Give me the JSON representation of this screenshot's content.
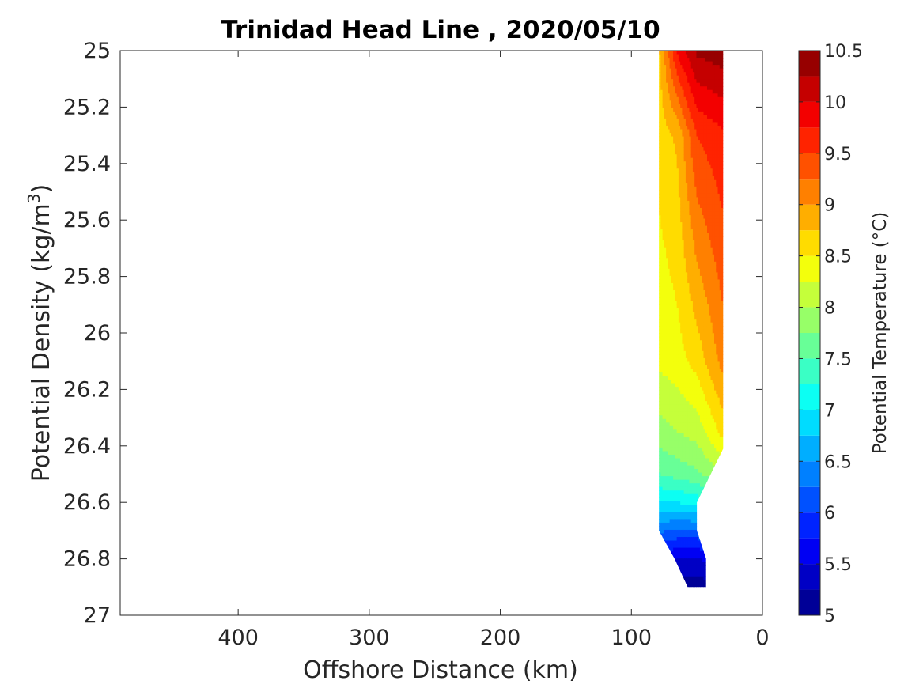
{
  "chart_data": {
    "type": "contour",
    "title": "Trinidad Head Line , 2020/05/10",
    "xlabel": "Offshore Distance (km)",
    "ylabel": "Potential Density (kg/m",
    "ylabel_sup": "3",
    "ylabel_close": ")",
    "xlim": [
      490,
      0
    ],
    "xdirection": "reversed",
    "ylim": [
      25,
      27
    ],
    "ydirection": "reversed",
    "xticks": [
      400,
      300,
      200,
      100,
      0
    ],
    "xtick_labels": [
      "400",
      "300",
      "200",
      "100",
      "0"
    ],
    "yticks": [
      25,
      25.2,
      25.4,
      25.6,
      25.8,
      26,
      26.2,
      26.4,
      26.6,
      26.8,
      27
    ],
    "ytick_labels": [
      "25",
      "25.2",
      "25.4",
      "25.6",
      "25.8",
      "26",
      "26.2",
      "26.4",
      "26.6",
      "26.8",
      "27"
    ],
    "grid": false,
    "colorbar": {
      "label": "Potential Temperature (°C)",
      "colormap": "jet",
      "clim": [
        5,
        10.5
      ],
      "step": 0.25,
      "ticks": [
        5,
        5.5,
        6,
        6.5,
        7,
        7.5,
        8,
        8.5,
        9,
        9.5,
        10,
        10.5
      ],
      "tick_labels": [
        "5",
        "5.5",
        "6",
        "6.5",
        "7",
        "7.5",
        "8",
        "8.5",
        "9",
        "9.5",
        "10",
        "10.5"
      ],
      "position": "right"
    },
    "section": {
      "x_offshore": 79,
      "x_inshore": 30,
      "sigma_top": 25,
      "boundary": [
        [
          79,
          25
        ],
        [
          30,
          25
        ],
        [
          30,
          26.41
        ],
        [
          50,
          26.6
        ],
        [
          50,
          26.7
        ],
        [
          43,
          26.8
        ],
        [
          43,
          26.9
        ],
        [
          57,
          26.9
        ],
        [
          67,
          26.8
        ],
        [
          79,
          26.7
        ]
      ],
      "temperature_profiles": [
        {
          "x": 79,
          "sigma": [
            25,
            25.3,
            26.1,
            26.35,
            26.5,
            26.6,
            26.7,
            26.8,
            26.9
          ],
          "theta": [
            8.7,
            8.6,
            8.3,
            7.9,
            7.5,
            7.0,
            6.3,
            5.6,
            5.2
          ]
        },
        {
          "x": 65,
          "sigma": [
            25,
            25.3,
            26.1,
            26.35,
            26.5,
            26.6,
            26.7,
            26.8,
            26.9
          ],
          "theta": [
            9.8,
            8.8,
            8.4,
            8.0,
            7.6,
            7.0,
            6.2,
            5.5,
            5.1
          ]
        },
        {
          "x": 50,
          "sigma": [
            25,
            25.3,
            26.1,
            26.35,
            26.5,
            26.6,
            26.7,
            26.8,
            26.9
          ],
          "theta": [
            10.3,
            9.5,
            8.6,
            8.1,
            7.7,
            7.1,
            6.2,
            5.5,
            5.1
          ]
        },
        {
          "x": 30,
          "sigma": [
            25,
            25.3,
            26.1,
            26.35,
            26.5,
            26.6,
            26.7,
            26.8,
            26.9
          ],
          "theta": [
            10.4,
            9.7,
            9.1,
            8.6,
            8.0,
            7.3,
            6.4,
            5.6,
            5.2
          ]
        }
      ]
    }
  }
}
